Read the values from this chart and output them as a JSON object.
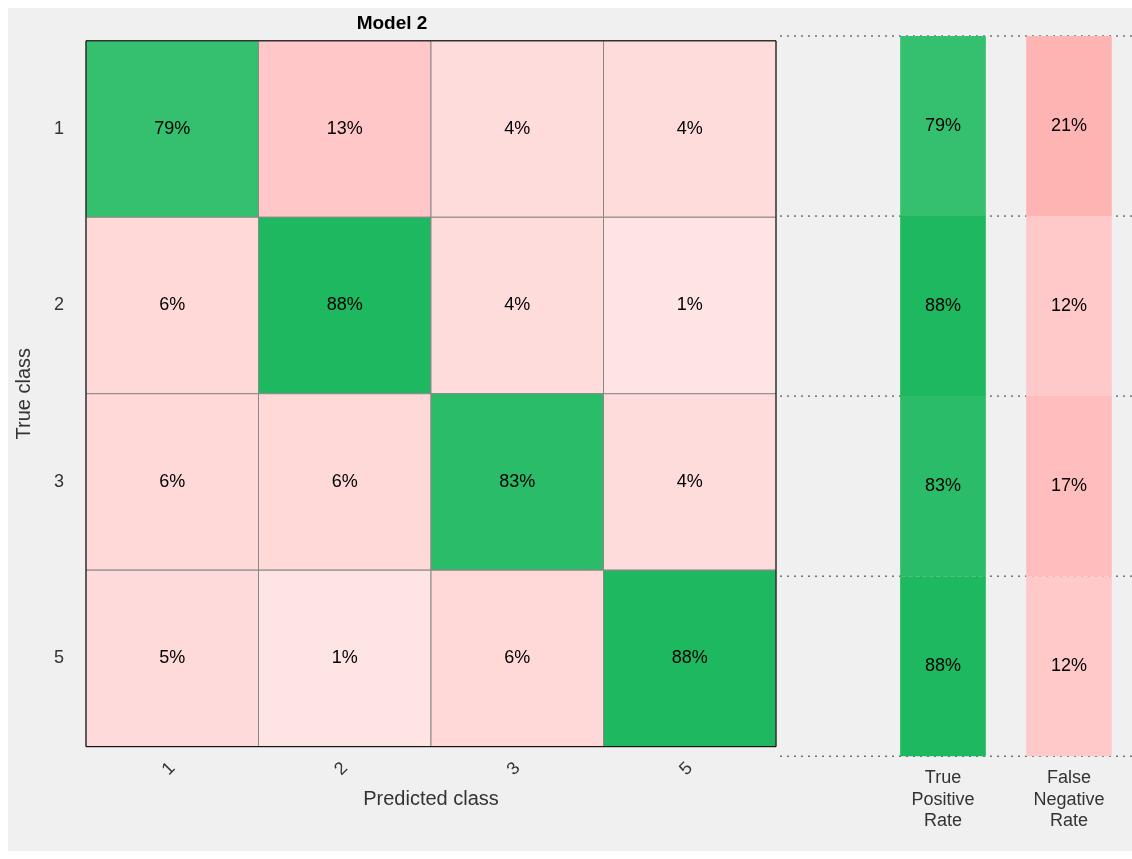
{
  "chart_data": [
    {
      "type": "heatmap",
      "title": "Model 2",
      "xlabel": "Predicted class",
      "ylabel": "True class",
      "categories": [
        "1",
        "2",
        "3",
        "5"
      ],
      "y_categories": [
        "1",
        "2",
        "3",
        "5"
      ],
      "cells": [
        [
          79,
          13,
          4,
          4
        ],
        [
          6,
          88,
          4,
          1
        ],
        [
          6,
          6,
          83,
          4
        ],
        [
          5,
          1,
          6,
          88
        ]
      ],
      "cell_labels": [
        [
          "79%",
          "13%",
          "4%",
          "4%"
        ],
        [
          "6%",
          "88%",
          "4%",
          "1%"
        ],
        [
          "6%",
          "6%",
          "83%",
          "4%"
        ],
        [
          "5%",
          "1%",
          "6%",
          "88%"
        ]
      ]
    },
    {
      "type": "heatmap",
      "categories": [
        "True Positive Rate",
        "False Negative Rate"
      ],
      "y_categories": [
        null,
        null,
        null,
        null
      ],
      "tick_labels": "x",
      "cells": [
        [
          79,
          21
        ],
        [
          88,
          12
        ],
        [
          83,
          17
        ],
        [
          88,
          12
        ]
      ],
      "cell_labels": [
        [
          "79%",
          "21%"
        ],
        [
          "88%",
          "12%"
        ],
        [
          "83%",
          "17%"
        ],
        [
          "88%",
          "12%"
        ]
      ]
    }
  ]
}
